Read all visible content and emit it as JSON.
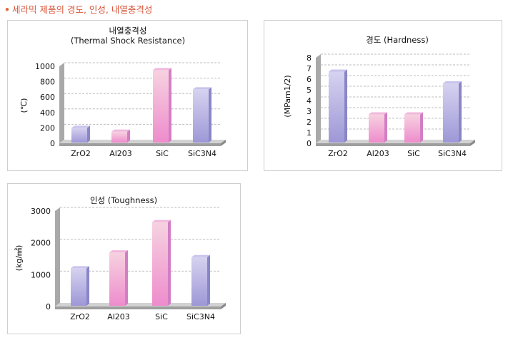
{
  "heading": "세라믹 제품의 경도, 인성, 내열충격성",
  "colors": {
    "heading": "#d8563a",
    "bar_purple": "#a8a4dc",
    "bar_pink": "#ee98cc",
    "floor": "#c4c4c4"
  },
  "chart_data": [
    {
      "type": "bar",
      "title": "내열충격성",
      "subtitle": "(Thermal Shock Resistance)",
      "ylabel": "(℃)",
      "categories": [
        "ZrO2",
        "Al203",
        "SiC",
        "SiC3N4"
      ],
      "values": [
        200,
        150,
        950,
        700
      ],
      "colors": [
        "purple",
        "pink",
        "pink",
        "purple"
      ],
      "yticks": [
        0,
        200,
        400,
        600,
        800,
        1000
      ],
      "ylim": [
        0,
        1000
      ],
      "grid": true
    },
    {
      "type": "bar",
      "title": "경도 (Hardness)",
      "subtitle": "",
      "ylabel": "(MPam1/2)",
      "categories": [
        "ZrO2",
        "Al203",
        "SiC",
        "SiC3N4"
      ],
      "values": [
        6.7,
        2.7,
        2.7,
        5.6
      ],
      "colors": [
        "purple",
        "pink",
        "pink",
        "purple"
      ],
      "yticks": [
        0,
        1,
        2,
        3,
        4,
        5,
        6,
        7,
        8
      ],
      "ylim": [
        0,
        8
      ],
      "grid": true
    },
    {
      "type": "bar",
      "title": "인성 (Toughness)",
      "subtitle": "",
      "ylabel": "(kg/㎟)",
      "categories": [
        "ZrO2",
        "Al203",
        "SiC",
        "SiC3N4"
      ],
      "values": [
        1200,
        1700,
        2650,
        1550
      ],
      "colors": [
        "purple",
        "pink",
        "pink",
        "purple"
      ],
      "yticks": [
        0,
        1000,
        2000,
        3000
      ],
      "ylim": [
        0,
        3000
      ],
      "grid": true
    }
  ]
}
